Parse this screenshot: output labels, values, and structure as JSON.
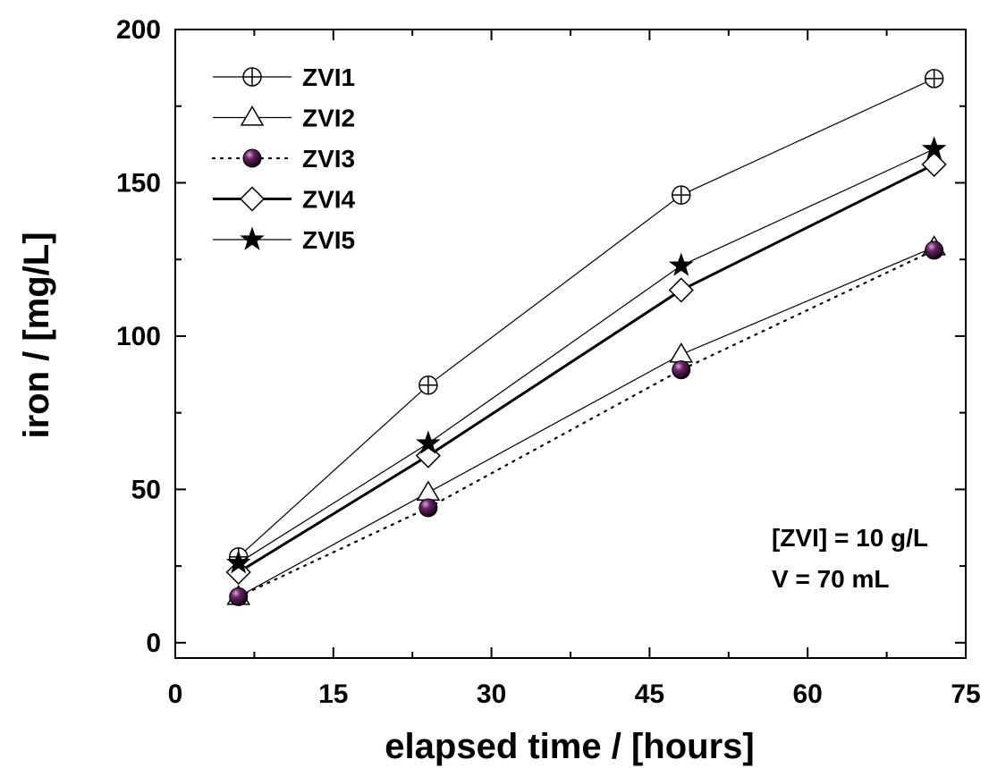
{
  "chart_data": {
    "type": "line",
    "xlabel": "elapsed time / [hours]",
    "ylabel": "iron / [mg/L]",
    "xlim": [
      0,
      75
    ],
    "ylim": [
      -5,
      200
    ],
    "xticks": [
      0,
      15,
      30,
      45,
      60,
      75
    ],
    "yticks": [
      0,
      50,
      100,
      150,
      200
    ],
    "grid": false,
    "legend_position": "top-left",
    "x": [
      6,
      24,
      48,
      72
    ],
    "series": [
      {
        "name": "ZVI1",
        "values": [
          28,
          84,
          146,
          184
        ],
        "marker": "circle-cross",
        "line": "thin-solid"
      },
      {
        "name": "ZVI2",
        "values": [
          15,
          49,
          94,
          129
        ],
        "marker": "triangle-open",
        "line": "thin-solid"
      },
      {
        "name": "ZVI3",
        "values": [
          15,
          44,
          89,
          128
        ],
        "marker": "sphere-filled",
        "line": "dotted"
      },
      {
        "name": "ZVI4",
        "values": [
          23,
          61,
          115,
          156
        ],
        "marker": "diamond-open",
        "line": "thick-solid"
      },
      {
        "name": "ZVI5",
        "values": [
          26,
          65,
          123,
          161
        ],
        "marker": "star-filled",
        "line": "thin-solid"
      }
    ],
    "annotations": [
      "[ZVI] = 10 g/L",
      "V = 70 mL"
    ],
    "colors": {
      "axis": "#000000",
      "marker_fill_sphere": "#5a1e58",
      "marker_outline": "#000000"
    }
  }
}
